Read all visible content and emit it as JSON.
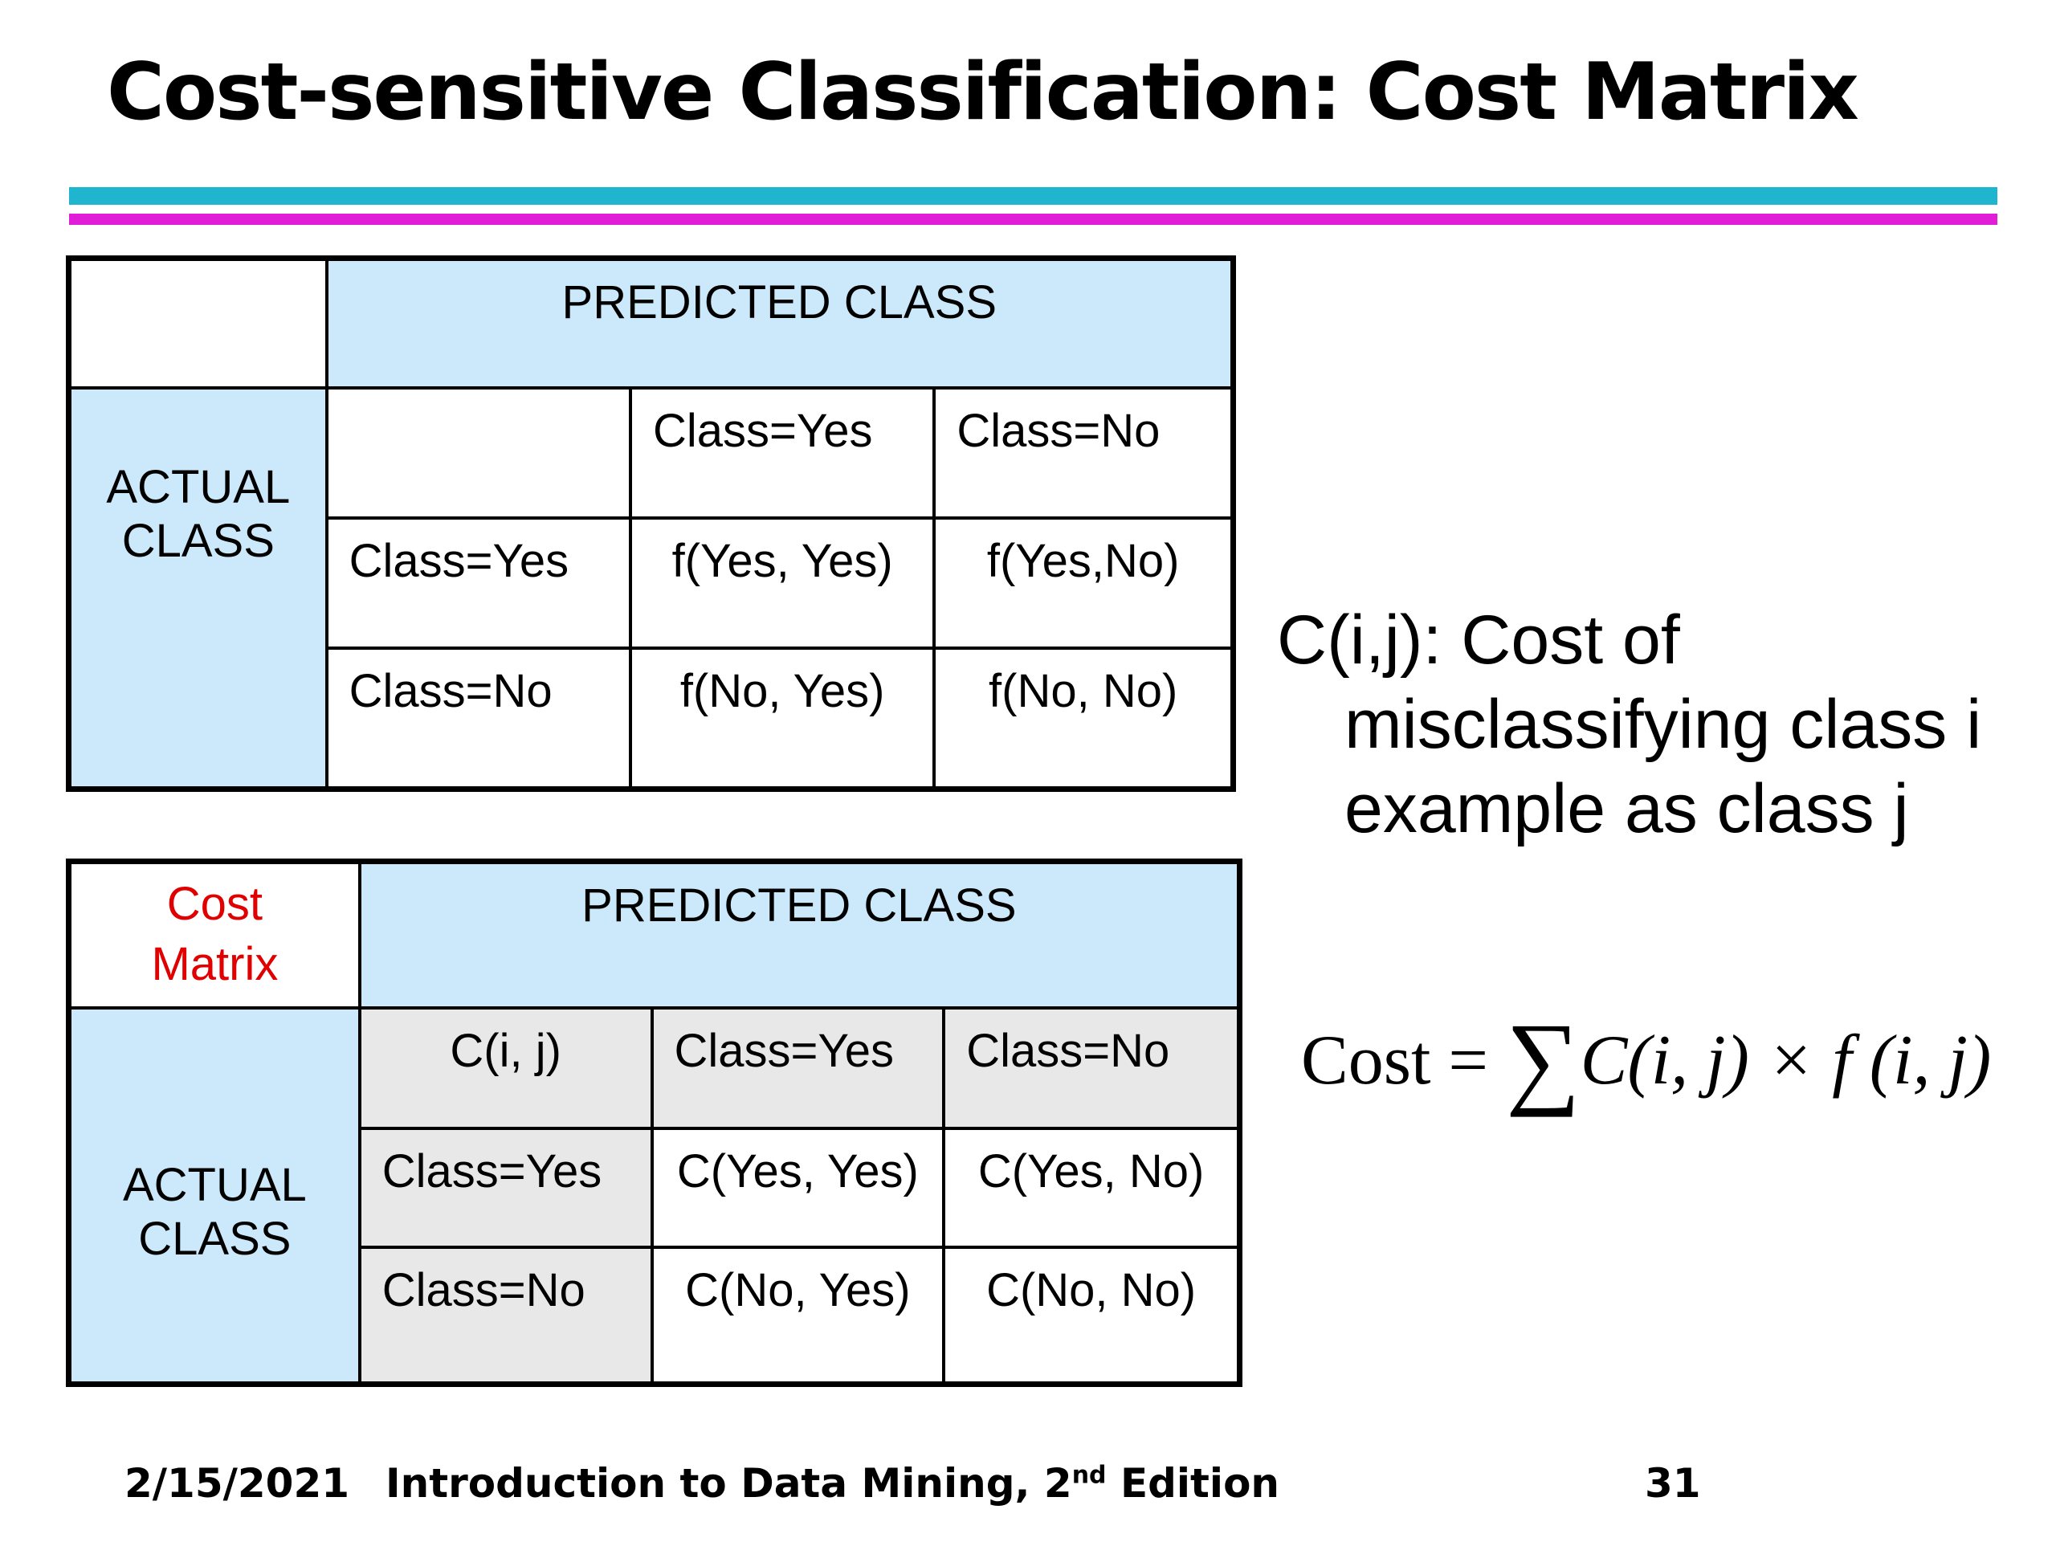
{
  "slide": {
    "title": "Cost-sensitive Classification: Cost Matrix"
  },
  "confusion_matrix": {
    "predicted_header": "PREDICTED CLASS",
    "actual_header": "ACTUAL CLASS",
    "col_yes": "Class=Yes",
    "col_no": "Class=No",
    "row_yes": "Class=Yes",
    "row_no": "Class=No",
    "cells": {
      "yes_yes": "f(Yes, Yes)",
      "yes_no": "f(Yes,No)",
      "no_yes": "f(No, Yes)",
      "no_no": "f(No, No)"
    }
  },
  "cost_matrix": {
    "corner_line1": "Cost",
    "corner_line2": "Matrix",
    "predicted_header": "PREDICTED CLASS",
    "actual_header": "ACTUAL CLASS",
    "corner_cell": "C(i, j)",
    "col_yes": "Class=Yes",
    "col_no": "Class=No",
    "row_yes": "Class=Yes",
    "row_no": "Class=No",
    "cells": {
      "yes_yes": "C(Yes, Yes)",
      "yes_no": "C(Yes, No)",
      "no_yes": "C(No, Yes)",
      "no_no": "C(No, No)"
    },
    "corner_color": "#e00000"
  },
  "description": {
    "line1": "C(i,j): Cost of",
    "line2": "misclassifying class i example as class j"
  },
  "formula": {
    "lhs": "Cost =",
    "sigma": "∑",
    "rhs": "C(i, j) × f (i, j)"
  },
  "footer": {
    "date": "2/15/2021",
    "book_prefix": "Introduction to Data Mining, 2",
    "book_sup": "nd",
    "book_suffix": " Edition",
    "page_number": "31"
  },
  "colors": {
    "header_blue": "#cce9fb",
    "rule_cyan": "#1fb5cf",
    "rule_magenta": "#e01ed8",
    "cell_grey": "#e8e8e8"
  }
}
